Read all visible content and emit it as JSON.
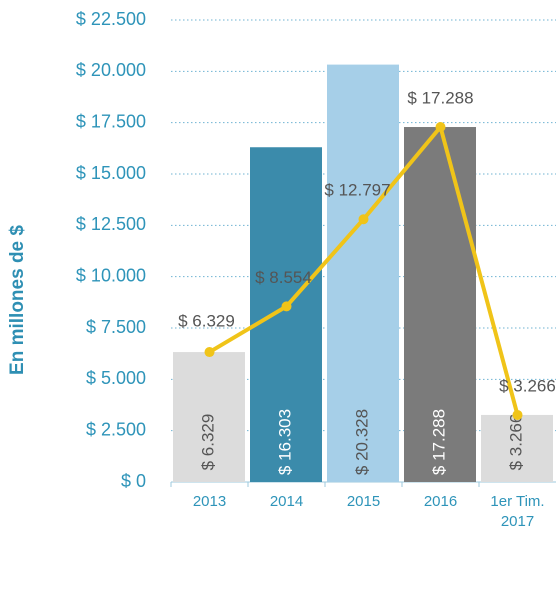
{
  "chart_data": {
    "type": "bar_line",
    "y_label": "En millones de $",
    "categories": [
      "2013",
      "2014",
      "2015",
      "2016",
      "1er Tim. 2017"
    ],
    "series": [
      {
        "type": "bar",
        "colors": [
          "#dcdcdc",
          "#3b8bab",
          "#a6cfe8",
          "#7b7b7b",
          "#dcdcdc"
        ],
        "label_colors": [
          "#555555",
          "#ffffff",
          "#555555",
          "#ffffff",
          "#555555"
        ],
        "values": [
          6329,
          16303,
          20328,
          17288,
          3266
        ],
        "value_labels": [
          "$ 6.329",
          "$ 16.303",
          "$ 20.328",
          "$ 17.288",
          "$ 3.266"
        ]
      },
      {
        "type": "line",
        "color": "#f0c419",
        "values": [
          6329,
          8554,
          12797,
          17288,
          3266
        ],
        "value_labels": [
          "$ 6.329",
          "$ 8.554",
          "$ 12.797",
          "$ 17.288",
          "$ 3.266"
        ]
      }
    ],
    "ylim": [
      0,
      22500
    ],
    "yticks": [
      {
        "value": 0,
        "label": "$ 0"
      },
      {
        "value": 2500,
        "label": "$ 2.500"
      },
      {
        "value": 5000,
        "label": "$ 5.000"
      },
      {
        "value": 7500,
        "label": "$ 7.500"
      },
      {
        "value": 10000,
        "label": "$ 10.000"
      },
      {
        "value": 12500,
        "label": "$ 12.500"
      },
      {
        "value": 15000,
        "label": "$ 15.000"
      },
      {
        "value": 17500,
        "label": "$ 17.500"
      },
      {
        "value": 20000,
        "label": "$ 20.000"
      },
      {
        "value": 22500,
        "label": "$ 22.500"
      }
    ],
    "grid": true
  }
}
